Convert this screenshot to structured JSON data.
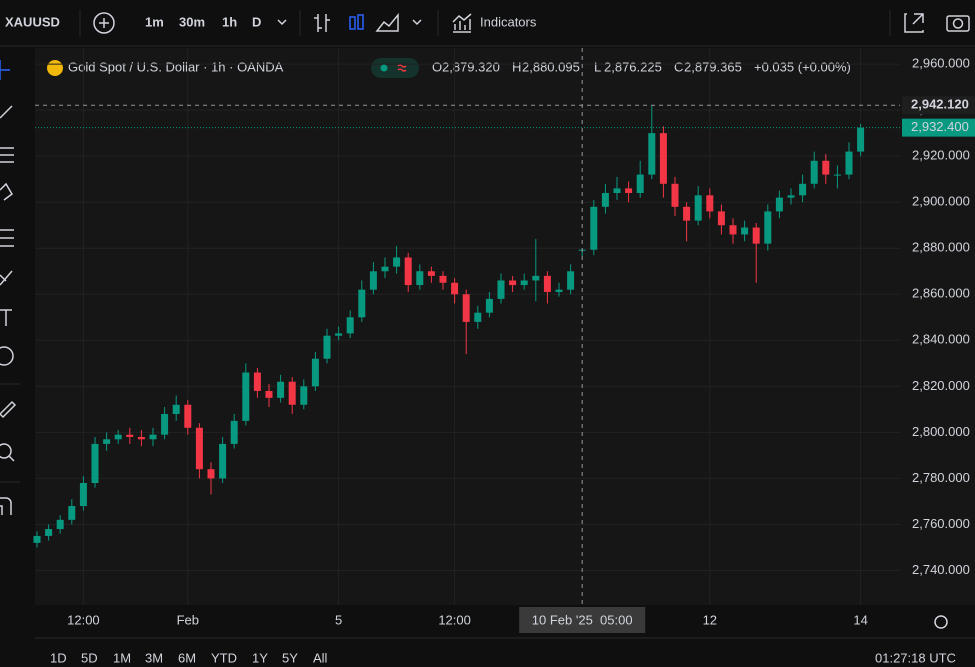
{
  "toolbar": {
    "symbol": "XAUUSD",
    "intervals": [
      "1m",
      "30m",
      "1h",
      "D"
    ],
    "active_interval": 2,
    "indicators": "Indicators"
  },
  "chart_data": {
    "type": "candlestick",
    "title": "Gold Spot / U.S. Dollar · 1h · OANDA",
    "categories": [
      null,
      null,
      null,
      null,
      "12:00",
      null,
      null,
      null,
      null,
      null,
      null,
      null,
      null,
      "Feb",
      null,
      null,
      null,
      null,
      null,
      null,
      null,
      null,
      null,
      null,
      null,
      null,
      "5",
      null,
      null,
      null,
      null,
      null,
      null,
      null,
      null,
      null,
      "12:00",
      null,
      null,
      null,
      null,
      null,
      null,
      null,
      null,
      null,
      null,
      "10 Feb '25  05:00",
      null,
      null,
      null,
      null,
      null,
      null,
      null,
      null,
      null,
      null,
      "12",
      null,
      null,
      null,
      null,
      null,
      null,
      null,
      null,
      null,
      null,
      null,
      null,
      "14"
    ],
    "open": [
      2752,
      2755,
      2758,
      2762,
      2768,
      2778,
      2795,
      2797,
      2799,
      2798,
      2797,
      2799,
      2808,
      2812,
      2802,
      2784,
      2780,
      2795,
      2805,
      2826,
      2818,
      2815,
      2822,
      2812,
      2820,
      2832,
      2842,
      2843,
      2850,
      2862,
      2870,
      2872,
      2876,
      2864,
      2870,
      2868,
      2865,
      2860,
      2848,
      2852,
      2858,
      2866,
      2864,
      2866,
      2868,
      2861,
      2862,
      2879.32,
      2879.365,
      2898,
      2904,
      2906,
      2904,
      2912,
      2930,
      2908,
      2898,
      2892,
      2903,
      2896,
      2890,
      2886,
      2889,
      2882,
      2896,
      2902,
      2903,
      2908,
      2918,
      2912,
      2912,
      2922
    ],
    "high": [
      2757,
      2760,
      2764,
      2771,
      2781,
      2798,
      2800,
      2801,
      2802,
      2801,
      2802,
      2811,
      2816,
      2814,
      2804,
      2787,
      2798,
      2808,
      2830,
      2828,
      2821,
      2825,
      2824,
      2823,
      2835,
      2845,
      2846,
      2853,
      2866,
      2874,
      2876,
      2881,
      2878,
      2873,
      2872,
      2870,
      2867,
      2862,
      2855,
      2861,
      2869,
      2868,
      2869,
      2884,
      2870,
      2865,
      2873,
      2880.095,
      2901,
      2908,
      2911,
      2909,
      2918,
      2942,
      2933,
      2911,
      2900,
      2907,
      2906,
      2899,
      2893,
      2892,
      2891,
      2899,
      2905,
      2906,
      2912,
      2922,
      2921,
      2916,
      2926,
      2934
    ],
    "low": [
      2750,
      2753,
      2756,
      2760,
      2766,
      2776,
      2792,
      2795,
      2795,
      2794,
      2794,
      2797,
      2805,
      2799,
      2780,
      2773,
      2778,
      2793,
      2803,
      2815,
      2811,
      2813,
      2808,
      2810,
      2818,
      2830,
      2840,
      2841,
      2848,
      2860,
      2867,
      2869,
      2861,
      2862,
      2865,
      2862,
      2856,
      2834,
      2845,
      2850,
      2856,
      2861,
      2862,
      2857,
      2856,
      2859,
      2860,
      2876.225,
      2877,
      2895,
      2901,
      2900,
      2902,
      2910,
      2902,
      2894,
      2883,
      2890,
      2893,
      2886,
      2882,
      2883,
      2865,
      2879,
      2893,
      2899,
      2900,
      2906,
      2908,
      2906,
      2910,
      2920
    ],
    "close": [
      2755,
      2758,
      2762,
      2768,
      2778,
      2795,
      2797,
      2799,
      2798,
      2797,
      2799,
      2808,
      2812,
      2802,
      2784,
      2780,
      2795,
      2805,
      2826,
      2818,
      2815,
      2822,
      2812,
      2820,
      2832,
      2842,
      2843,
      2850,
      2862,
      2870,
      2872,
      2876,
      2864,
      2870,
      2868,
      2865,
      2860,
      2848,
      2852,
      2858,
      2866,
      2864,
      2866,
      2868,
      2861,
      2862,
      2870,
      2879.365,
      2898,
      2904,
      2906,
      2904,
      2912,
      2930,
      2908,
      2898,
      2892,
      2903,
      2896,
      2890,
      2886,
      2889,
      2882,
      2896,
      2902,
      2903,
      2908,
      2918,
      2912,
      2912,
      2922,
      2932.4
    ],
    "up_color": "#089981",
    "down_color": "#f23645",
    "ylim": [
      2725,
      2967
    ],
    "yticks": [
      {
        "value": 2960,
        "label": "2,960.000"
      },
      {
        "value": 2940,
        "label": "2,940.000"
      },
      {
        "value": 2920,
        "label": "2,920.000"
      },
      {
        "value": 2900,
        "label": "2,900.000"
      },
      {
        "value": 2880,
        "label": "2,880.000"
      },
      {
        "value": 2860,
        "label": "2,860.000"
      },
      {
        "value": 2840,
        "label": "2,840.000"
      },
      {
        "value": 2820,
        "label": "2,820.000"
      },
      {
        "value": 2800,
        "label": "2,800.000"
      },
      {
        "value": 2780,
        "label": "2,780.000"
      },
      {
        "value": 2760,
        "label": "2,760.000"
      },
      {
        "value": 2740,
        "label": "2,740.000"
      }
    ],
    "crosshair": {
      "index": 47,
      "price": {
        "value": 2942.12,
        "label": "2,942.120"
      }
    },
    "last_price": {
      "value": 2932.4,
      "label": "2,932.400"
    },
    "grid": true
  },
  "ohlc_legend": [
    {
      "letter": "O",
      "text": "2,879.320"
    },
    {
      "letter": "H",
      "text": "2,880.095"
    },
    {
      "letter": "L",
      "text": "2,876.225"
    },
    {
      "letter": "C",
      "text": "2,879.365"
    }
  ],
  "change": "+0.035 (+0.00%)",
  "range_buttons": [
    "1D",
    "5D",
    "1M",
    "3M",
    "6M",
    "YTD",
    "1Y",
    "5Y",
    "All"
  ],
  "clock": "01:27:18 UTC"
}
